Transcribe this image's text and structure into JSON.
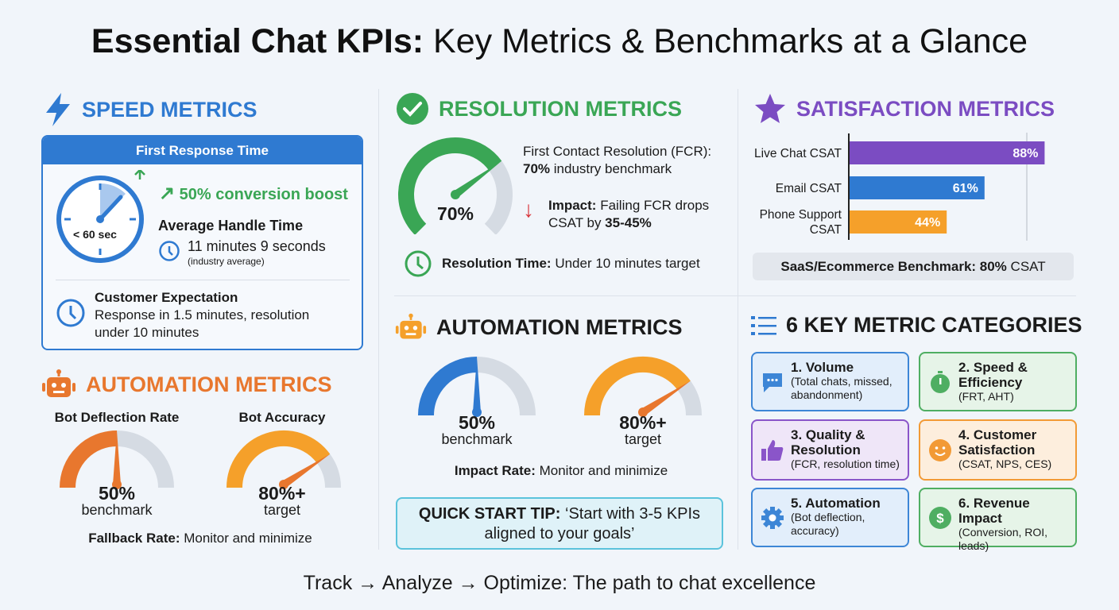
{
  "title": {
    "bold": "Essential Chat KPIs:",
    "rest": " Key Metrics & Benchmarks at a Glance"
  },
  "colors": {
    "blue": "#2f7ad1",
    "green": "#3aa655",
    "purple": "#7b4cc2",
    "orange": "#e8772e",
    "amber": "#f5a02a",
    "track": "#d5dbe3"
  },
  "speed": {
    "heading": "SPEED METRICS",
    "icon": "lightning-icon",
    "card_title": "First Response Time",
    "clock_label": "< 60 sec",
    "boost": "50% conversion boost",
    "aht_title": "Average Handle Time",
    "aht_value": "11 minutes 9 seconds",
    "aht_note": "(industry average)",
    "expect_title": "Customer Expectation",
    "expect_text": "Response in 1.5 minutes, resolution under 10 minutes"
  },
  "automation_left": {
    "heading": "AUTOMATION METRICS",
    "icon": "robot-icon",
    "gauges": [
      {
        "title": "Bot Deflection Rate",
        "value": 50,
        "label": "50%",
        "sub": "benchmark"
      },
      {
        "title": "Bot Accuracy",
        "value": 80,
        "label": "80%+",
        "sub": "target"
      }
    ],
    "fallback_bold": "Fallback Rate:",
    "fallback_text": " Monitor and minimize"
  },
  "resolution": {
    "heading": "RESOLUTION METRICS",
    "icon": "check-circle-icon",
    "gauge_value": 70,
    "gauge_label": "70%",
    "fcr_line1": "First Contact Resolution (FCR):",
    "fcr_bold": "70%",
    "fcr_rest": " industry benchmark",
    "impact_bold": "Impact:",
    "impact_text1": " Failing FCR drops",
    "impact_text2": "CSAT by ",
    "impact_range": "35-45%",
    "time_bold": "Resolution Time:",
    "time_text": " Under 10 minutes target"
  },
  "automation_mid": {
    "heading": "AUTOMATION METRICS",
    "gauges": [
      {
        "value": 50,
        "label": "50%",
        "sub": "benchmark"
      },
      {
        "value": 80,
        "label": "80%+",
        "sub": "target"
      }
    ],
    "impact_bold": "Impact Rate:",
    "impact_text": " Monitor and minimize",
    "tip_bold": "QUICK START TIP:",
    "tip_text": " ‘Start with 3-5 KPIs aligned to your goals’"
  },
  "satisfaction": {
    "heading": "SATISFACTION METRICS",
    "icon": "star-icon",
    "benchmark_bold": "SaaS/Ecommerce Benchmark: 80%",
    "benchmark_rest": " CSAT"
  },
  "chart_data": {
    "type": "bar",
    "orientation": "horizontal",
    "categories": [
      "Live Chat CSAT",
      "Email CSAT",
      "Phone Support CSAT"
    ],
    "values": [
      88,
      61,
      44
    ],
    "labels": [
      "88%",
      "61%",
      "44%"
    ],
    "colors": [
      "#7b4cc2",
      "#2f7ad1",
      "#f5a02a"
    ],
    "reference_line": 80,
    "xlim": [
      0,
      100
    ]
  },
  "categories": {
    "heading": "6 KEY METRIC CATEGORIES",
    "icon": "list-icon",
    "items": [
      {
        "title": "1. Volume",
        "desc": "(Total chats, missed, abandonment)",
        "icon": "chat-bubble-icon"
      },
      {
        "title": "2. Speed & Efficiency",
        "desc": "(FRT, AHT)",
        "icon": "stopwatch-icon"
      },
      {
        "title": "3. Quality & Resolution",
        "desc": "(FCR, resolution time)",
        "icon": "thumbs-up-icon"
      },
      {
        "title": "4. Customer Satisfaction",
        "desc": "(CSAT, NPS, CES)",
        "icon": "smiley-icon"
      },
      {
        "title": "5. Automation",
        "desc": "(Bot deflection, accuracy)",
        "icon": "gear-icon"
      },
      {
        "title": "6. Revenue Impact",
        "desc": "(Conversion, ROI, leads)",
        "icon": "dollar-icon"
      }
    ]
  },
  "footer": "Track → Analyze → Optimize: The path to chat excellence"
}
